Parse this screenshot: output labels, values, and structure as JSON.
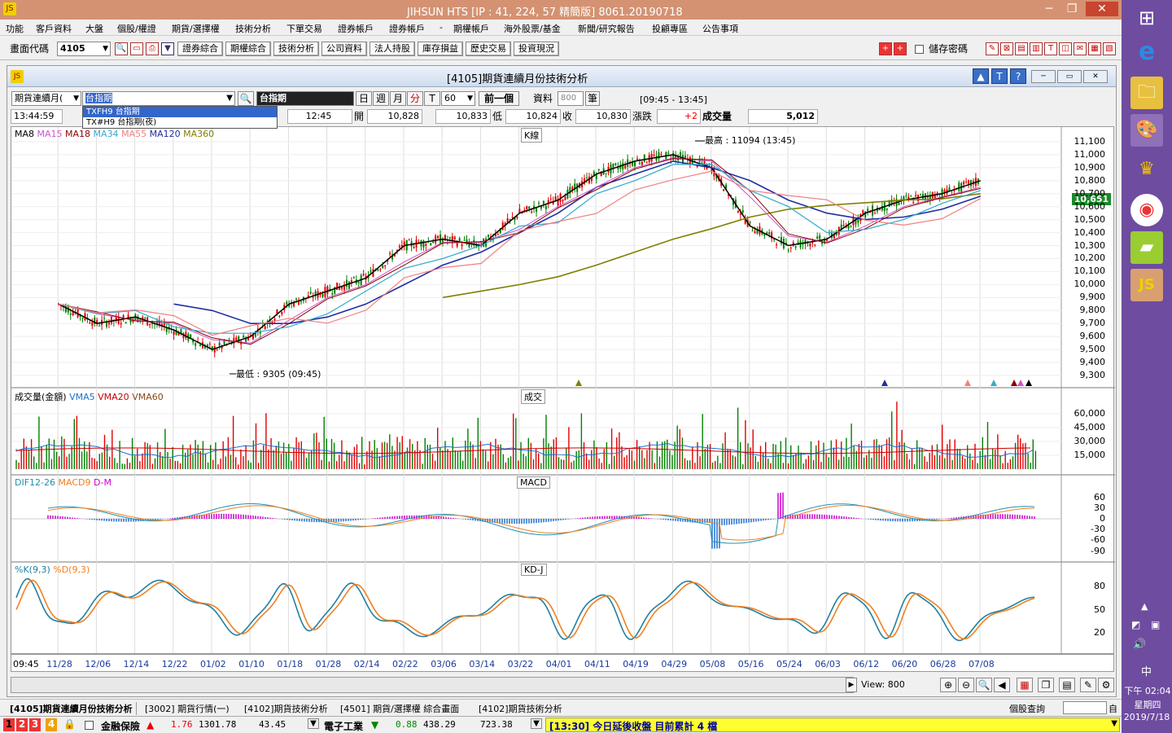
{
  "window": {
    "title": "JIHSUN HTS     [IP : 41, 224, 57 精簡版] 8061.20190718",
    "logo": "jihsun-logo"
  },
  "menu": [
    "功能",
    "客戶資料",
    "大盤",
    "個股/權證",
    "期貨/選擇權",
    "技術分析",
    "下單交易",
    "證券帳戶",
    "證券帳戶",
    "-",
    "期權帳戶",
    "海外股票/基金",
    "新聞/研究報告",
    "投顧專區",
    "公告事項"
  ],
  "toolbar": {
    "code_label": "畫面代碼",
    "code_value": "4105",
    "buttons": [
      "證券綜合",
      "期權綜合",
      "技術分析",
      "公司資料",
      "法人持股",
      "庫存損益",
      "歷史交易",
      "投資現況"
    ],
    "save_pw": "儲存密碼"
  },
  "panel": {
    "title": "[4105]期貨連續月份技術分析"
  },
  "controls": {
    "mode": "期貨連續月(",
    "symbol_input": "台指期",
    "symbol_name": "台指期",
    "dropdown": [
      "TXFH9 台指期",
      "TX#H9 台指期(夜)"
    ],
    "periods": [
      "日",
      "週",
      "月",
      "分",
      "T"
    ],
    "minutes": "60",
    "prev": "前一個",
    "data_label": "資料",
    "data_count": "800",
    "unit": "筆",
    "session": "[09:45 - 13:45]"
  },
  "info": {
    "time": "13:44:59",
    "bar_time": "12:45",
    "open_label": "開",
    "open": "10,828",
    "high": "10,833",
    "low_label": "低",
    "low": "10,824",
    "close_label": "收",
    "close": "10,830",
    "chg_label": "漲跌",
    "chg": "+2",
    "vol_label": "成交量",
    "vol": "5,012"
  },
  "legends": {
    "price": [
      {
        "t": "MA8",
        "c": "#000000"
      },
      {
        "t": "MA15",
        "c": "#cc55cc"
      },
      {
        "t": "MA18",
        "c": "#8b0000"
      },
      {
        "t": "MA34",
        "c": "#33aacc"
      },
      {
        "t": "MA55",
        "c": "#f08080"
      },
      {
        "t": "MA120",
        "c": "#1f2fa0"
      },
      {
        "t": "MA360",
        "c": "#808000"
      }
    ],
    "vol": [
      {
        "t": "成交量(金額)",
        "c": "#000"
      },
      {
        "t": "VMA5",
        "c": "#1f6fd0"
      },
      {
        "t": "VMA20",
        "c": "#cc0000"
      },
      {
        "t": "VMA60",
        "c": "#8b4513"
      }
    ],
    "macd": [
      {
        "t": "DIF12-26",
        "c": "#2090b0"
      },
      {
        "t": "MACD9",
        "c": "#f08020"
      },
      {
        "t": "D-M",
        "c": "#cc00cc"
      }
    ],
    "kd": [
      {
        "t": "%K(9,3)",
        "c": "#2080a0"
      },
      {
        "t": "%D(9,3)",
        "c": "#f08020"
      }
    ]
  },
  "pane_tags": {
    "price": "K線",
    "vol": "成交",
    "macd": "MACD",
    "kd": "KD-J"
  },
  "annotations": {
    "high": "最高 : 11094 (13:45)",
    "low": "最低 : 9305 (09:45)",
    "last_price": "10,651"
  },
  "price_ticks": [
    "11,100",
    "11,000",
    "10,900",
    "10,800",
    "10,700",
    "10,600",
    "10,500",
    "10,400",
    "10,300",
    "10,200",
    "10,100",
    "10,000",
    "9,900",
    "9,800",
    "9,700",
    "9,600",
    "9,500",
    "9,400",
    "9,300"
  ],
  "vol_ticks": [
    "60,000",
    "45,000",
    "30,000",
    "15,000"
  ],
  "macd_ticks": [
    "60",
    "30",
    "0",
    "-30",
    "-60",
    "-90"
  ],
  "kd_ticks": [
    "80",
    "50",
    "20"
  ],
  "xaxis": [
    "09:45",
    "11/28",
    "12/06",
    "12/14",
    "12/22",
    "01/02",
    "01/10",
    "01/18",
    "01/28",
    "02/14",
    "02/22",
    "03/06",
    "03/14",
    "03/22",
    "04/01",
    "04/11",
    "04/19",
    "04/29",
    "05/08",
    "05/16",
    "05/24",
    "06/03",
    "06/12",
    "06/20",
    "06/28",
    "07/08"
  ],
  "status": {
    "view_label": "View: 800"
  },
  "tabs": [
    "[4105]期貨連續月份技術分析",
    "[3002] 期貨行情(一)",
    "[4102]期貨技術分析",
    "[4501] 期貨/選擇權 綜合畫面",
    "[4102]期貨技術分析"
  ],
  "tabs_right": "個股查詢",
  "bottom": {
    "nums": [
      "1",
      "2",
      "3",
      "4"
    ],
    "item1": "金融保險",
    "v1a": "1.76",
    "v1b": "1301.78",
    "v1c": "43.45",
    "item2": "電子工業",
    "v2a": "0.88",
    "v2b": "438.29",
    "v2c": "723.38",
    "ticker": "[13:30] 今日延後收盤 目前累計 4 檔"
  },
  "taskbar": {
    "ime": "中",
    "time": "下午 02:04",
    "weekday": "星期四",
    "date": "2019/7/18"
  },
  "chart_data": {
    "type": "line",
    "title": "[4105]期貨連續月份技術分析",
    "xlabel": "",
    "ylabel": "",
    "x": [
      "11/28",
      "12/06",
      "12/14",
      "12/22",
      "01/02",
      "01/10",
      "01/18",
      "01/28",
      "02/14",
      "02/22",
      "03/06",
      "03/14",
      "03/22",
      "04/01",
      "04/11",
      "04/19",
      "04/29",
      "05/08",
      "05/16",
      "05/24",
      "06/03",
      "06/12",
      "06/20",
      "06/28",
      "07/08"
    ],
    "ylim": [
      9300,
      11150
    ],
    "series": [
      {
        "name": "MA8",
        "values": [
          9850,
          9700,
          9750,
          9650,
          9500,
          9600,
          9850,
          9950,
          10050,
          10300,
          10350,
          10300,
          10550,
          10650,
          10850,
          10950,
          11000,
          10900,
          10450,
          10300,
          10350,
          10550,
          10650,
          10700,
          10800
        ]
      },
      {
        "name": "MA120",
        "values": [
          null,
          null,
          null,
          9850,
          9800,
          9700,
          9700,
          9750,
          9850,
          10000,
          10150,
          10250,
          10400,
          10550,
          10750,
          10850,
          10950,
          10900,
          10800,
          10650,
          10550,
          10500,
          10520,
          10580,
          10680
        ]
      },
      {
        "name": "MA360",
        "values": [
          null,
          null,
          null,
          null,
          null,
          null,
          null,
          null,
          null,
          null,
          9900,
          9950,
          10000,
          10060,
          10150,
          10250,
          10350,
          10430,
          10520,
          10580,
          10610,
          10630,
          10650,
          10660,
          10700
        ]
      }
    ]
  }
}
